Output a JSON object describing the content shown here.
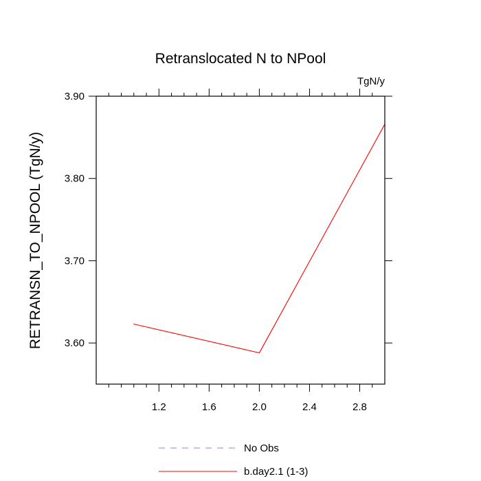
{
  "chart_data": {
    "type": "line",
    "title": "Retranslocated N to NPool",
    "units_label": "TgN/y",
    "xlabel": "",
    "ylabel": "RETRANSN_TO_NPOOL  (TgN/y)",
    "xlim": [
      0.7,
      3.0
    ],
    "ylim": [
      3.55,
      3.9
    ],
    "x_ticks": [
      1.2,
      1.6,
      2.0,
      2.4,
      2.8
    ],
    "x_tick_labels": [
      "1.2",
      "1.6",
      "2.0",
      "2.4",
      "2.8"
    ],
    "y_ticks": [
      3.6,
      3.7,
      3.8,
      3.9
    ],
    "y_tick_labels": [
      "3.60",
      "3.70",
      "3.80",
      "3.90"
    ],
    "grid": false,
    "legend_position": "bottom",
    "series": [
      {
        "name": "b.day2.1 (1-3)",
        "color": "#ff0000",
        "dash": "solid",
        "x": [
          1,
          2,
          3
        ],
        "y": [
          3.623,
          3.588,
          3.866
        ]
      }
    ],
    "legend": [
      {
        "label": "No Obs",
        "color": "#8080ff",
        "dash": "dashed"
      },
      {
        "label": "b.day2.1 (1-3)",
        "color": "#ff0000",
        "dash": "solid"
      }
    ]
  }
}
